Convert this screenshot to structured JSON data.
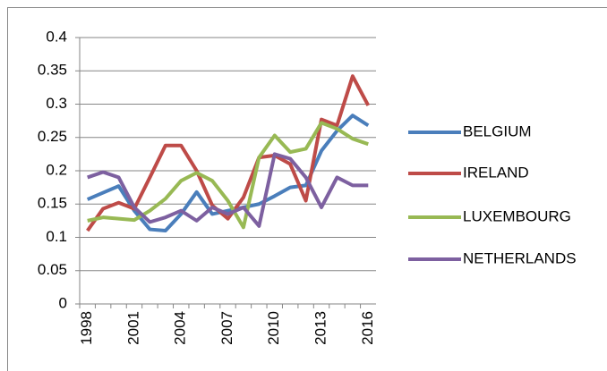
{
  "chart_data": {
    "type": "line",
    "categories": [
      "1998",
      null,
      null,
      "2001",
      null,
      null,
      "2004",
      null,
      null,
      "2007",
      null,
      null,
      "2010",
      null,
      null,
      "2013",
      null,
      null,
      "2016"
    ],
    "series": [
      {
        "name": "BELGIUM",
        "color": "#4a7ebb",
        "values": [
          0.157,
          0.167,
          0.177,
          0.14,
          0.112,
          0.11,
          0.135,
          0.168,
          0.135,
          0.14,
          0.145,
          0.15,
          0.162,
          0.175,
          0.178,
          0.23,
          0.26,
          0.283,
          0.268
        ]
      },
      {
        "name": "IRELAND",
        "color": "#be4b48",
        "values": [
          0.11,
          0.143,
          0.152,
          0.143,
          0.19,
          0.238,
          0.238,
          0.2,
          0.148,
          0.128,
          0.16,
          0.22,
          0.223,
          0.21,
          0.155,
          0.277,
          0.268,
          0.342,
          0.298
        ]
      },
      {
        "name": "LUXEMBOURG",
        "color": "#98b954",
        "values": [
          0.125,
          0.13,
          0.128,
          0.126,
          0.14,
          0.158,
          0.185,
          0.197,
          0.185,
          0.155,
          0.115,
          0.22,
          0.253,
          0.228,
          0.233,
          0.272,
          0.263,
          0.248,
          0.24
        ]
      },
      {
        "name": "NETHERLANDS",
        "color": "#7d60a0",
        "values": [
          0.19,
          0.198,
          0.19,
          0.145,
          0.123,
          0.13,
          0.14,
          0.125,
          0.145,
          0.135,
          0.145,
          0.117,
          0.225,
          0.218,
          0.19,
          0.145,
          0.19,
          0.178,
          0.178
        ]
      }
    ],
    "ylim": [
      0,
      0.4
    ],
    "yticks": [
      0,
      0.05,
      0.1,
      0.15,
      0.2,
      0.25,
      0.3,
      0.35,
      0.4
    ],
    "grid": true,
    "legend": "right"
  }
}
